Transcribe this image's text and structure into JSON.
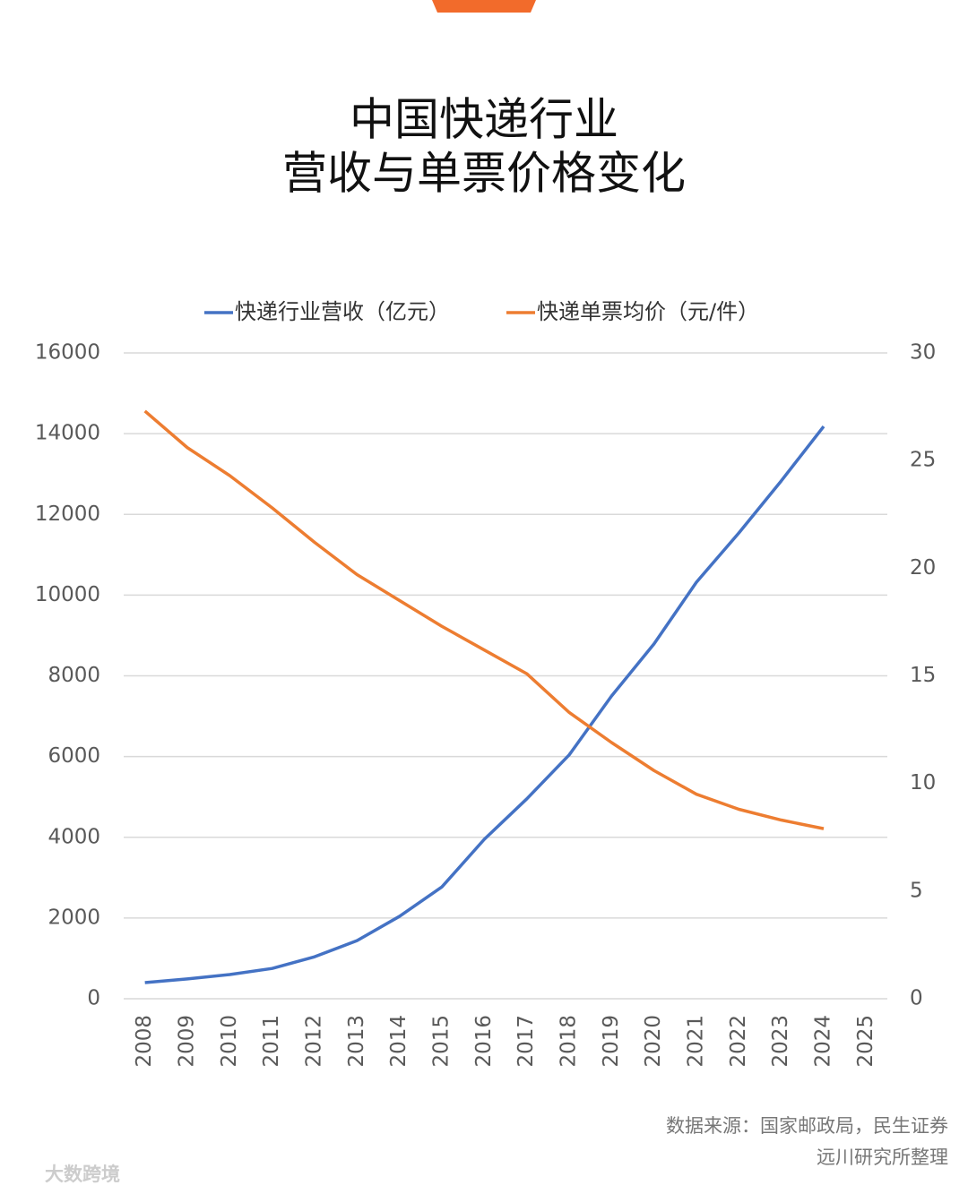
{
  "chart_data": {
    "type": "line",
    "title": [
      "中国快递行业",
      "营收与单票价格变化"
    ],
    "categories": [
      "2008",
      "2009",
      "2010",
      "2011",
      "2012",
      "2013",
      "2014",
      "2015",
      "2016",
      "2017",
      "2018",
      "2019",
      "2020",
      "2021",
      "2022",
      "2023",
      "2024",
      "2025"
    ],
    "series": [
      {
        "name": "快递行业营收（亿元）",
        "color": "#4472c4",
        "values": [
          400,
          490,
          600,
          750,
          1040,
          1440,
          2040,
          2770,
          3950,
          4950,
          6040,
          7500,
          8790,
          10320,
          11540,
          12830,
          14180,
          null
        ]
      },
      {
        "name": "快递单票均价（元/件）",
        "color": "#ed7d31",
        "axis": "y2",
        "values": [
          27.3,
          25.6,
          24.3,
          22.8,
          21.2,
          19.7,
          18.5,
          17.3,
          16.2,
          15.1,
          13.3,
          11.9,
          10.6,
          9.5,
          8.8,
          8.3,
          7.9,
          null
        ]
      }
    ],
    "ylim": [
      0,
      16000
    ],
    "yticks": [
      0,
      2000,
      4000,
      6000,
      8000,
      10000,
      12000,
      14000,
      16000
    ],
    "y2lim": [
      0,
      30
    ],
    "y2ticks": [
      0,
      5,
      10,
      15,
      20,
      25,
      30
    ],
    "grid": true,
    "legend": "top",
    "source": [
      "数据来源：国家邮政局，民生证券",
      "远川研究所整理"
    ],
    "watermark": "大数跨境"
  }
}
